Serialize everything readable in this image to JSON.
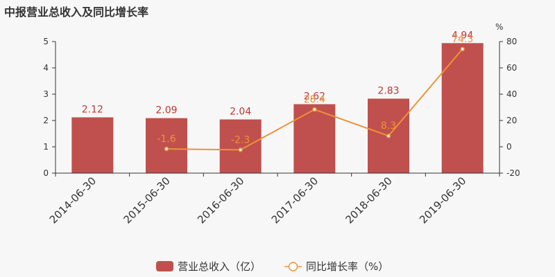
{
  "title": "中报营业总收入及同比增长率",
  "chart_data": {
    "type": "bar",
    "title": "中报营业总收入及同比增长率",
    "categories": [
      "2014-06-30",
      "2015-06-30",
      "2016-06-30",
      "2017-06-30",
      "2018-06-30",
      "2019-06-30"
    ],
    "series": [
      {
        "name": "营业总收入（亿）",
        "type": "bar",
        "axis": "left",
        "color": "#c0504d",
        "values": [
          2.12,
          2.09,
          2.04,
          2.62,
          2.83,
          4.94
        ]
      },
      {
        "name": "同比增长率（%）",
        "type": "line",
        "axis": "right",
        "color": "#f0913a",
        "values": [
          null,
          -1.6,
          -2.3,
          28.4,
          8.3,
          74.3
        ]
      }
    ],
    "y_left": {
      "min": 0,
      "max": 5,
      "ticks": [
        0,
        1,
        2,
        3,
        4,
        5
      ]
    },
    "y_right": {
      "min": -20,
      "max": 80,
      "ticks": [
        -20,
        0,
        20,
        40,
        60,
        80
      ],
      "unit": "%"
    },
    "legend_position": "bottom-center",
    "grid": false
  }
}
